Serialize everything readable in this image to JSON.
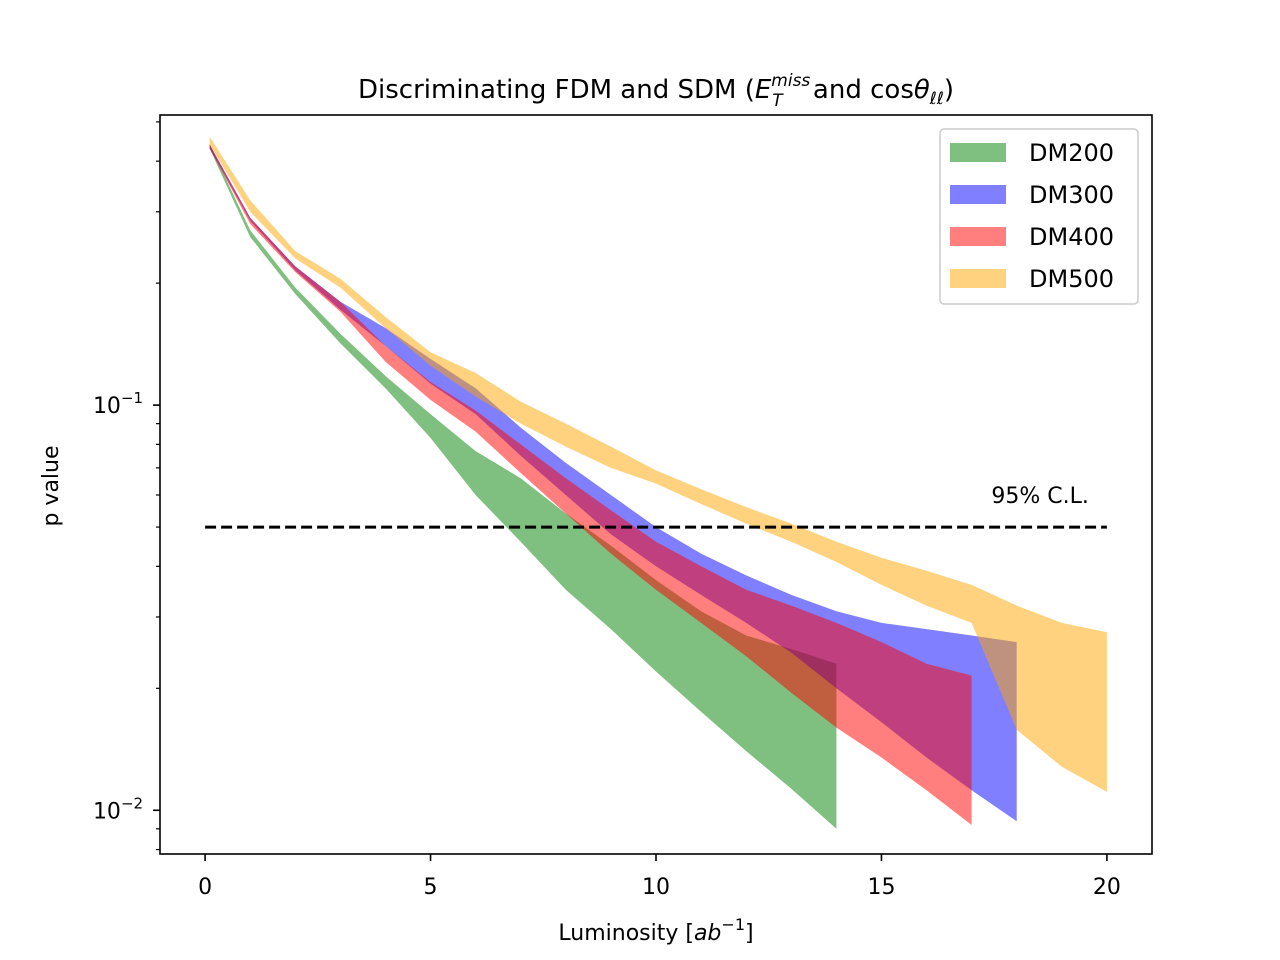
{
  "chart_data": {
    "type": "area",
    "title": {
      "prefix": "Discriminating FDM and SDM (",
      "var1_base": "E",
      "var1_sub": "T",
      "var1_sup": "miss",
      "mid": " and cos",
      "var2_base": "θ",
      "var2_sub": "ℓℓ",
      "suffix": ")"
    },
    "xlabel": {
      "prefix": "Luminosity [",
      "base": "ab",
      "sup": "−1",
      "suffix": "]"
    },
    "ylabel": "p value",
    "xlim": [
      -1,
      21
    ],
    "ylim": [
      0.0078,
      0.52
    ],
    "yscale": "log",
    "x_ticks": [
      0,
      5,
      10,
      15,
      20
    ],
    "x_tick_labels": [
      "0",
      "5",
      "10",
      "15",
      "20"
    ],
    "y_ticks": [
      {
        "value": 0.1,
        "base": "10",
        "exp": "−1"
      },
      {
        "value": 0.01,
        "base": "10",
        "exp": "−2"
      }
    ],
    "y_minor_ticks": [
      0.008,
      0.009,
      0.02,
      0.03,
      0.04,
      0.05,
      0.06,
      0.07,
      0.08,
      0.09,
      0.2,
      0.3,
      0.4,
      0.5
    ],
    "threshold": {
      "value": 0.05,
      "x_range": [
        0,
        20
      ],
      "label": "95% C.L.",
      "label_x": 19.6
    },
    "series": [
      {
        "name": "DM200",
        "color": "#008000",
        "opacity": 0.5,
        "x": [
          0.1,
          1,
          2,
          3,
          4,
          5,
          6,
          7,
          8,
          9,
          10,
          11,
          12,
          13,
          14
        ],
        "upper": [
          0.44,
          0.27,
          0.195,
          0.15,
          0.118,
          0.095,
          0.077,
          0.066,
          0.054,
          0.045,
          0.037,
          0.031,
          0.027,
          0.025,
          0.023
        ],
        "lower": [
          0.43,
          0.26,
          0.188,
          0.142,
          0.11,
          0.083,
          0.06,
          0.046,
          0.035,
          0.028,
          0.022,
          0.0175,
          0.014,
          0.0113,
          0.009
        ]
      },
      {
        "name": "DM300",
        "color": "#0000ff",
        "opacity": 0.5,
        "x": [
          0.1,
          1,
          2,
          3,
          4,
          5,
          6,
          7,
          8,
          9,
          10,
          11,
          12,
          13,
          14,
          15,
          16,
          17,
          18
        ],
        "upper": [
          0.44,
          0.29,
          0.22,
          0.18,
          0.155,
          0.13,
          0.11,
          0.088,
          0.072,
          0.06,
          0.05,
          0.043,
          0.038,
          0.034,
          0.031,
          0.029,
          0.028,
          0.027,
          0.026
        ],
        "lower": [
          0.43,
          0.285,
          0.215,
          0.172,
          0.14,
          0.113,
          0.095,
          0.075,
          0.06,
          0.048,
          0.04,
          0.034,
          0.029,
          0.0245,
          0.02,
          0.0165,
          0.0135,
          0.0112,
          0.0094
        ]
      },
      {
        "name": "DM400",
        "color": "#ff0000",
        "opacity": 0.5,
        "x": [
          0.1,
          1,
          2,
          3,
          4,
          5,
          6,
          7,
          8,
          9,
          10,
          11,
          12,
          13,
          14,
          15,
          16,
          17
        ],
        "upper": [
          0.44,
          0.29,
          0.22,
          0.18,
          0.14,
          0.114,
          0.097,
          0.08,
          0.066,
          0.055,
          0.046,
          0.04,
          0.035,
          0.032,
          0.029,
          0.026,
          0.023,
          0.0215
        ],
        "lower": [
          0.43,
          0.28,
          0.213,
          0.17,
          0.128,
          0.103,
          0.086,
          0.068,
          0.054,
          0.043,
          0.035,
          0.029,
          0.024,
          0.0195,
          0.016,
          0.0135,
          0.0112,
          0.0092
        ]
      },
      {
        "name": "DM500",
        "color": "#ffa500",
        "opacity": 0.5,
        "x": [
          0.1,
          1,
          2,
          3,
          4,
          5,
          6,
          7,
          8,
          9,
          10,
          11,
          12,
          13,
          14,
          15,
          16,
          17,
          18,
          19,
          20
        ],
        "upper": [
          0.46,
          0.32,
          0.24,
          0.205,
          0.165,
          0.135,
          0.12,
          0.102,
          0.09,
          0.079,
          0.069,
          0.062,
          0.056,
          0.051,
          0.046,
          0.042,
          0.039,
          0.036,
          0.032,
          0.029,
          0.0275
        ],
        "lower": [
          0.44,
          0.3,
          0.23,
          0.195,
          0.155,
          0.125,
          0.105,
          0.09,
          0.079,
          0.07,
          0.064,
          0.057,
          0.051,
          0.046,
          0.041,
          0.036,
          0.032,
          0.029,
          0.0158,
          0.0128,
          0.0111
        ]
      }
    ]
  }
}
